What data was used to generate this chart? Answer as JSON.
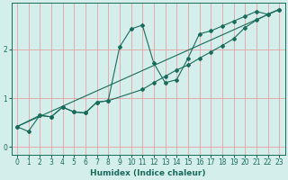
{
  "xlabel": "Humidex (Indice chaleur)",
  "background_color": "#d4eeec",
  "grid_color": "#e8a0a0",
  "line_color": "#1a6b5a",
  "xlim": [
    -0.5,
    23.5
  ],
  "ylim": [
    -0.15,
    2.95
  ],
  "yticks": [
    0,
    1,
    2
  ],
  "xticks": [
    0,
    1,
    2,
    3,
    4,
    5,
    6,
    7,
    8,
    9,
    10,
    11,
    12,
    13,
    14,
    15,
    16,
    17,
    18,
    19,
    20,
    21,
    22,
    23
  ],
  "line1_x": [
    0,
    1,
    2,
    3,
    4,
    5,
    6,
    7,
    8,
    9,
    10,
    11,
    12,
    13,
    14,
    15,
    16,
    17,
    18,
    19,
    20,
    21,
    22,
    23
  ],
  "line1_y": [
    0.42,
    0.32,
    0.65,
    0.62,
    0.82,
    0.72,
    0.7,
    0.92,
    0.95,
    2.05,
    2.42,
    2.5,
    1.72,
    1.32,
    1.38,
    1.82,
    2.32,
    2.38,
    2.48,
    2.58,
    2.68,
    2.78,
    2.72,
    2.82
  ],
  "line2_x": [
    0,
    2,
    3,
    4,
    5,
    6,
    7,
    8,
    11,
    12,
    13,
    14,
    15,
    16,
    17,
    18,
    19,
    20,
    21,
    22,
    23
  ],
  "line2_y": [
    0.42,
    0.65,
    0.62,
    0.82,
    0.72,
    0.7,
    0.92,
    0.95,
    1.18,
    1.32,
    1.45,
    1.58,
    1.68,
    1.82,
    1.95,
    2.08,
    2.22,
    2.45,
    2.6,
    2.72,
    2.82
  ],
  "line3_x": [
    0,
    23
  ],
  "line3_y": [
    0.42,
    2.82
  ]
}
